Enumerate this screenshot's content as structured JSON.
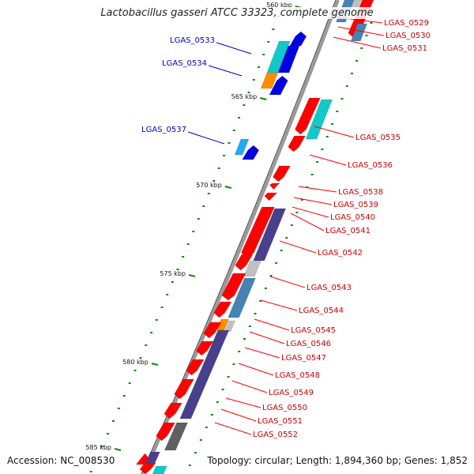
{
  "title": "Lactobacillus gasseri ATCC 33323, complete genome",
  "accession": "Accession: NC_008530",
  "topology": "Topology: circular; Length: 1,894,360 bp; Genes: 1,852",
  "colors": {
    "red": "#ff0000",
    "blue": "#0000e0",
    "cyan": "#12c8c8",
    "skyblue": "#22aaf0",
    "steel": "#4682b4",
    "purple": "#48408c",
    "orange": "#ff8c00",
    "lightgray": "#c0c0c0",
    "darkgray": "#606060",
    "green": "#0a8a0a",
    "leader_right": "#ff0000",
    "leader_left": "#0000cc",
    "label_right": "#cc0000",
    "label_left": "#0000cc"
  },
  "ticks": [
    {
      "label": "560 kbp"
    },
    {
      "label": "565 kbp"
    },
    {
      "label": "570 kbp"
    },
    {
      "label": "575 kbp"
    },
    {
      "label": "580 kbp"
    },
    {
      "label": "585 kbp"
    }
  ],
  "left_labels": [
    {
      "label": "LGAS_0533"
    },
    {
      "label": "LGAS_0534"
    },
    {
      "label": "LGAS_0537"
    }
  ],
  "right_labels": [
    {
      "label": "LGAS_0529"
    },
    {
      "label": "LGAS_0530"
    },
    {
      "label": "LGAS_0531"
    },
    {
      "label": "LGAS_0535"
    },
    {
      "label": "LGAS_0536"
    },
    {
      "label": "LGAS_0538"
    },
    {
      "label": "LGAS_0539"
    },
    {
      "label": "LGAS_0540"
    },
    {
      "label": "LGAS_0541"
    },
    {
      "label": "LGAS_0542"
    },
    {
      "label": "LGAS_0543"
    },
    {
      "label": "LGAS_0544"
    },
    {
      "label": "LGAS_0545"
    },
    {
      "label": "LGAS_0546"
    },
    {
      "label": "LGAS_0547"
    },
    {
      "label": "LGAS_0548"
    },
    {
      "label": "LGAS_0549"
    },
    {
      "label": "LGAS_0550"
    },
    {
      "label": "LGAS_0551"
    },
    {
      "label": "LGAS_0552"
    }
  ]
}
